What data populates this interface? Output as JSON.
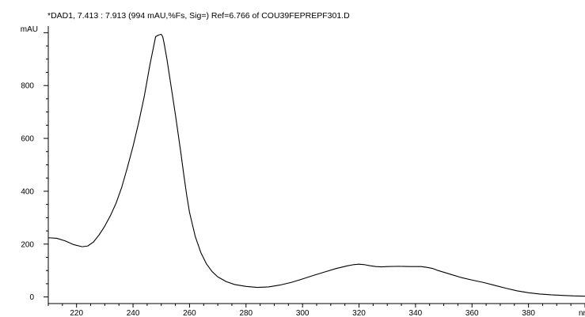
{
  "chart_data": {
    "type": "line",
    "title": "*DAD1, 7.413 : 7.913 (994 mAU,%Fs, Sig=) Ref=6.766 of COU39FEPREPF301.D",
    "ylabel": "mAU",
    "xlabel": "nm",
    "xlim": [
      210,
      400
    ],
    "ylim": [
      -25,
      1025
    ],
    "x_ticks": [
      220,
      240,
      260,
      280,
      300,
      320,
      340,
      360,
      380
    ],
    "y_ticks": [
      0,
      200,
      400,
      600,
      800
    ],
    "grid": false,
    "series": [
      {
        "color": "#000000",
        "x": [
          210,
          213,
          216,
          219,
          222,
          224,
          226,
          228,
          230,
          232,
          234,
          236,
          238,
          240,
          242,
          244,
          246,
          248,
          249,
          250,
          250.5,
          251,
          252,
          253,
          254,
          255,
          256,
          257,
          258,
          259,
          260,
          262,
          264,
          266,
          268,
          270,
          273,
          276,
          280,
          284,
          288,
          292,
          296,
          300,
          304,
          308,
          312,
          316,
          318,
          320,
          322,
          324,
          326,
          328,
          330,
          334,
          338,
          342,
          344,
          346,
          348,
          352,
          356,
          360,
          364,
          368,
          372,
          376,
          380,
          384,
          388,
          392,
          396,
          400
        ],
        "y": [
          224,
          222,
          212,
          198,
          190,
          193,
          208,
          235,
          268,
          308,
          355,
          415,
          490,
          570,
          660,
          760,
          880,
          985,
          991,
          994,
          985,
          960,
          900,
          830,
          760,
          690,
          615,
          540,
          460,
          385,
          320,
          230,
          168,
          125,
          96,
          76,
          58,
          47,
          40,
          36,
          38,
          45,
          55,
          68,
          82,
          95,
          108,
          118,
          122,
          124,
          122,
          118,
          115,
          114,
          115,
          116,
          115,
          115,
          112,
          108,
          100,
          87,
          74,
          64,
          55,
          44,
          33,
          23,
          16,
          11,
          8,
          6,
          4,
          3
        ]
      }
    ]
  }
}
